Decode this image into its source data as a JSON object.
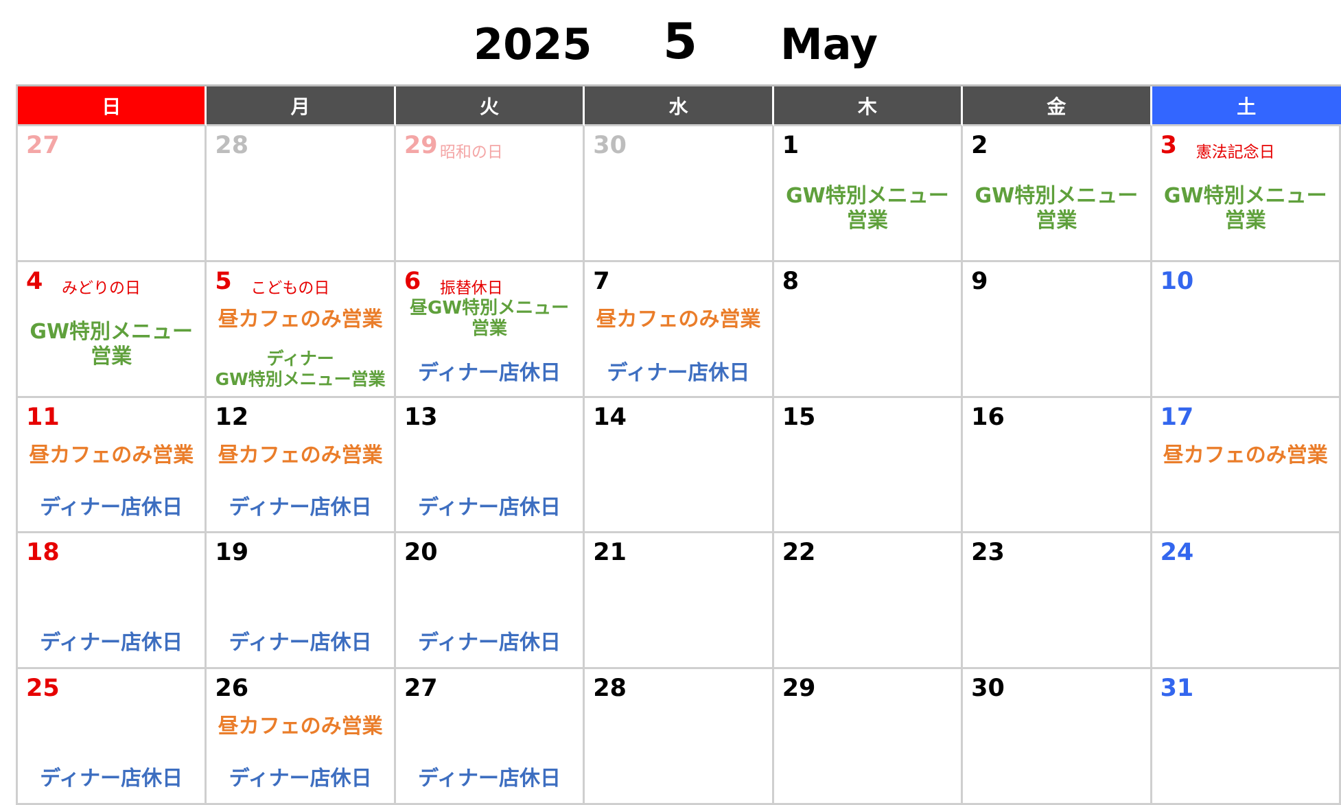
{
  "header": {
    "year": "2025",
    "month": "5",
    "month_en": "May"
  },
  "weekdays": [
    "日",
    "月",
    "火",
    "水",
    "木",
    "金",
    "土"
  ],
  "labels": {
    "gw_special": "GW特別メニュー\n営業",
    "lunch_cafe": "昼カフェのみ営業",
    "dinner_closed": "ディナー店休日",
    "dinner_gw": "ディナー\nGW特別メニュー営業",
    "lunch_gw": "昼GW特別メニュー\n営業"
  },
  "holidays": {
    "showa": "昭和の日",
    "kenpo": "憲法記念日",
    "midori": "みどりの日",
    "kodomo": "こどもの日",
    "furikae": "振替休日"
  },
  "days": {
    "d27a": "27",
    "d28a": "28",
    "d29a": "29",
    "d30a": "30",
    "d1": "1",
    "d2": "2",
    "d3": "3",
    "d4": "4",
    "d5": "5",
    "d6": "6",
    "d7": "7",
    "d8": "8",
    "d9": "9",
    "d10": "10",
    "d11": "11",
    "d12": "12",
    "d13": "13",
    "d14": "14",
    "d15": "15",
    "d16": "16",
    "d17": "17",
    "d18": "18",
    "d19": "19",
    "d20": "20",
    "d21": "21",
    "d22": "22",
    "d23": "23",
    "d24": "24",
    "d25": "25",
    "d26": "26",
    "d27": "27",
    "d28": "28",
    "d29": "29",
    "d30": "30",
    "d31": "31"
  }
}
